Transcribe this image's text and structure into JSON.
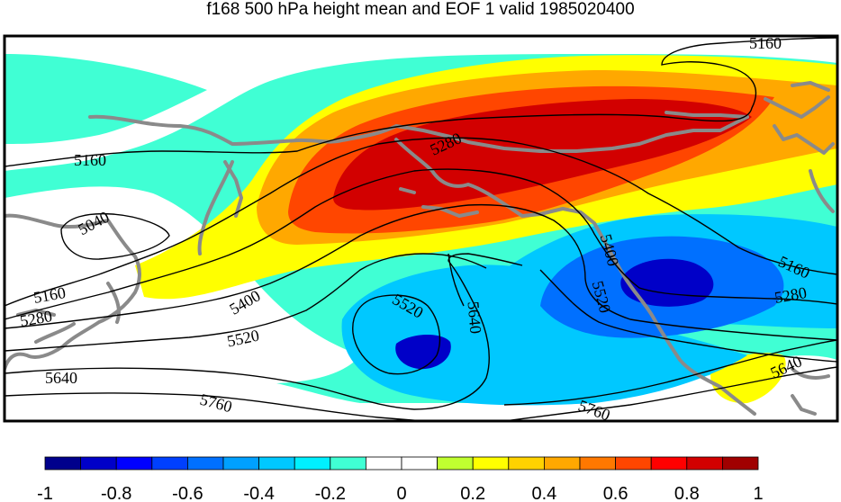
{
  "title": "f168 500 hPa height mean and EOF 1 valid 1985020400",
  "contour_labels": [
    {
      "id": "c5160-tr",
      "text": "5160"
    },
    {
      "id": "c5160-l",
      "text": "5160"
    },
    {
      "id": "c5280-t",
      "text": "5280"
    },
    {
      "id": "c5040",
      "text": "5040"
    },
    {
      "id": "c5400-r",
      "text": "5400"
    },
    {
      "id": "c5160-r",
      "text": "5160"
    },
    {
      "id": "c5520-low",
      "text": "5520"
    },
    {
      "id": "c5640-low",
      "text": "5640"
    },
    {
      "id": "c5520-r",
      "text": "5520"
    },
    {
      "id": "c5280-r",
      "text": "5280"
    },
    {
      "id": "c5160-ll",
      "text": "5160"
    },
    {
      "id": "c5400-l",
      "text": "5400"
    },
    {
      "id": "c5280-ll",
      "text": "5280"
    },
    {
      "id": "c5520-l",
      "text": "5520"
    },
    {
      "id": "c5640-l",
      "text": "5640"
    },
    {
      "id": "c5640-r",
      "text": "5640"
    },
    {
      "id": "c5760-l",
      "text": "5760"
    },
    {
      "id": "c5760-r",
      "text": "5760"
    }
  ],
  "colorbar": {
    "colors": [
      "#00008c",
      "#0000c8",
      "#0000ff",
      "#0040ff",
      "#0070ff",
      "#00a0ff",
      "#00c8ff",
      "#00f0ff",
      "#40ffd4",
      "#ffffff",
      "#ffffff",
      "#c0ff30",
      "#ffff00",
      "#ffd200",
      "#ffa800",
      "#ff7800",
      "#ff4600",
      "#ff0000",
      "#d20000",
      "#a00000"
    ],
    "ticks": [
      "-1",
      "-0.8",
      "-0.6",
      "-0.4",
      "-0.2",
      "0",
      "0.2",
      "0.4",
      "0.6",
      "0.8",
      "1"
    ]
  },
  "colors": {
    "strong_negative": "#0000c8",
    "negative": "#0070ff",
    "weak_negative": "#00c8ff",
    "slight_negative": "#40ffd4",
    "slight_positive": "#ffff00",
    "positive": "#ffa800",
    "strong_positive": "#d20000",
    "coastline": "#8a8a8a"
  }
}
